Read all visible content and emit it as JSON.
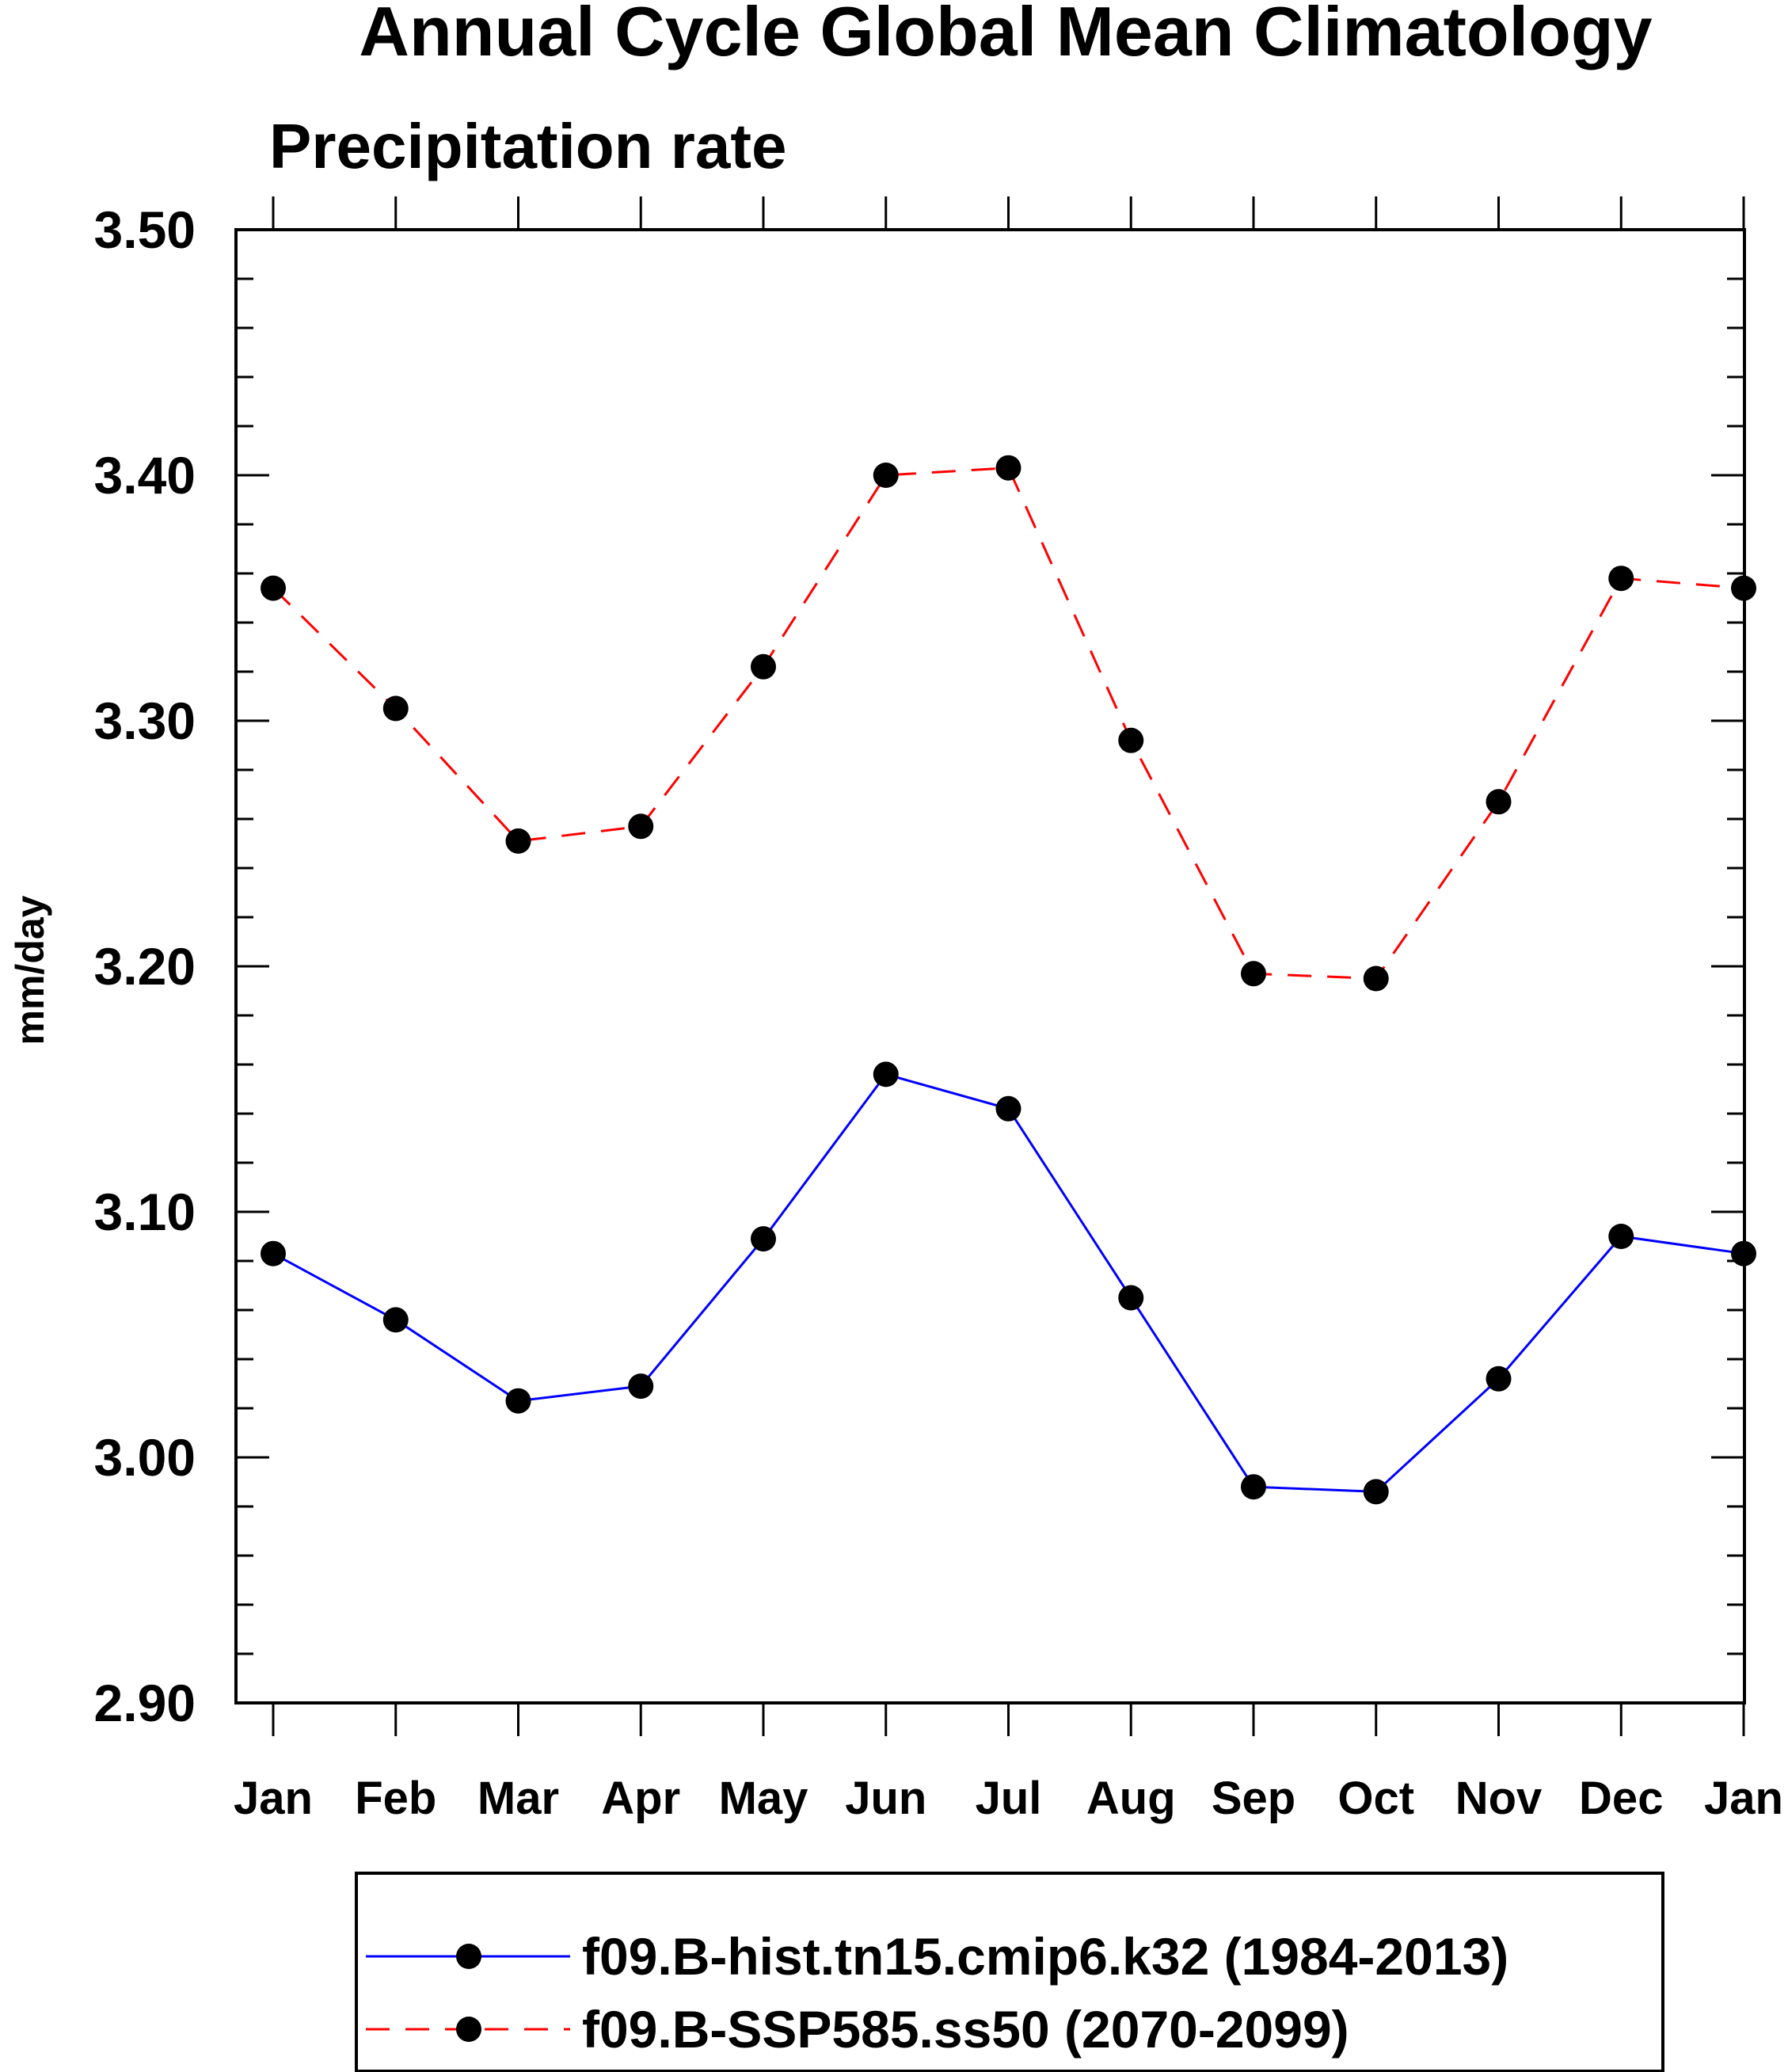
{
  "chart_data": {
    "type": "line",
    "title": "Annual Cycle Global Mean Climatology",
    "subtitle": "Precipitation rate",
    "xlabel": "",
    "ylabel": "mm/day",
    "categories": [
      "Jan",
      "Feb",
      "Mar",
      "Apr",
      "May",
      "Jun",
      "Jul",
      "Aug",
      "Sep",
      "Oct",
      "Nov",
      "Dec",
      "Jan"
    ],
    "ylim": [
      2.9,
      3.5
    ],
    "yticks": [
      "2.90",
      "3.00",
      "3.10",
      "3.20",
      "3.30",
      "3.40",
      "3.50"
    ],
    "grid": false,
    "legend_position": "bottom",
    "series": [
      {
        "name": "f09.B-hist.tn15.cmip6.k32 (1984-2013)",
        "color": "#0000ff",
        "dash": "solid",
        "values": [
          3.083,
          3.056,
          3.023,
          3.029,
          3.089,
          3.156,
          3.142,
          3.065,
          2.988,
          2.986,
          3.032,
          3.09,
          3.083
        ]
      },
      {
        "name": "f09.B-SSP585.ss50 (2070-2099)",
        "color": "#ff0000",
        "dash": "dashed",
        "values": [
          3.354,
          3.305,
          3.251,
          3.257,
          3.322,
          3.4,
          3.403,
          3.292,
          3.197,
          3.195,
          3.267,
          3.358,
          3.354
        ]
      }
    ]
  }
}
